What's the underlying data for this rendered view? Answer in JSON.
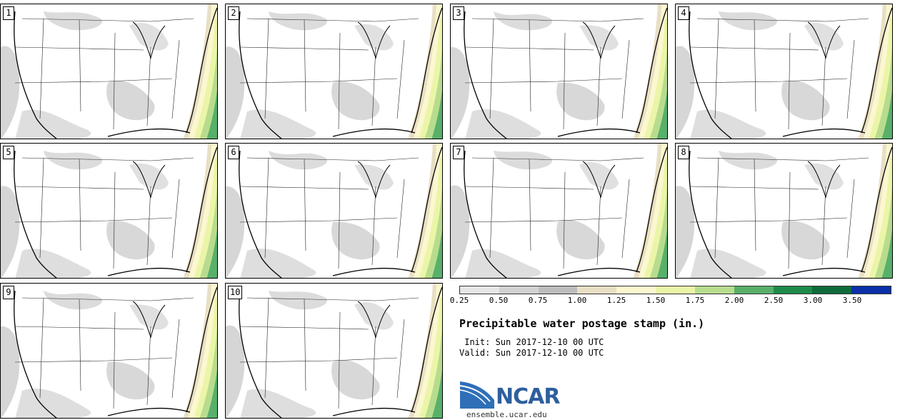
{
  "panels": [
    {
      "label": "1"
    },
    {
      "label": "2"
    },
    {
      "label": "3"
    },
    {
      "label": "4"
    },
    {
      "label": "5"
    },
    {
      "label": "6"
    },
    {
      "label": "7"
    },
    {
      "label": "8"
    },
    {
      "label": "9"
    },
    {
      "label": "10"
    }
  ],
  "legend": {
    "ticks": [
      "0.25",
      "0.50",
      "0.75",
      "1.00",
      "1.25",
      "1.50",
      "1.75",
      "2.00",
      "2.50",
      "3.00",
      "3.50"
    ],
    "colors": [
      "#e6e6e6",
      "#d2d2d2",
      "#bdbdbd",
      "#e8dfc4",
      "#fbf7cf",
      "#ebf5a8",
      "#b8dc8e",
      "#58b06a",
      "#1f8b4a",
      "#0f6b39",
      "#0a2fa8"
    ]
  },
  "title": "Precipitable water postage stamp (in.)",
  "init": " Init: Sun 2017-12-10 00 UTC",
  "valid": "Valid: Sun 2017-12-10 00 UTC",
  "logo_text": "NCAR",
  "site": "ensemble.ucar.edu"
}
